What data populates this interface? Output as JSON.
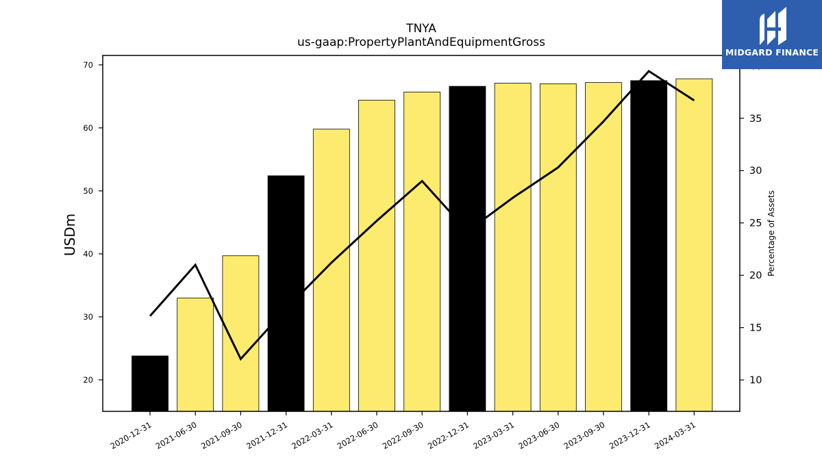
{
  "chart_data": {
    "type": "bar",
    "title": "TNYA",
    "subtitle": "us-gaap:PropertyPlantAndEquipmentGross",
    "ylabel": "USDm",
    "y2label": "Percentage of Assets",
    "categories": [
      "2020-12-31",
      "2021-06-30",
      "2021-09-30",
      "2021-12-31",
      "2022-03-31",
      "2022-06-30",
      "2022-09-30",
      "2022-12-31",
      "2023-03-31",
      "2023-06-30",
      "2023-09-30",
      "2023-12-31",
      "2024-03-31"
    ],
    "series": [
      {
        "type": "bar",
        "axis": "left",
        "values": [
          23.8,
          33.0,
          39.7,
          52.4,
          59.8,
          64.4,
          65.7,
          66.6,
          67.1,
          67.0,
          67.2,
          67.5,
          67.8
        ],
        "colors": [
          "#000000",
          "#fdeb6f",
          "#fdeb6f",
          "#000000",
          "#fdeb6f",
          "#fdeb6f",
          "#fdeb6f",
          "#000000",
          "#fdeb6f",
          "#fdeb6f",
          "#fdeb6f",
          "#000000",
          "#fdeb6f"
        ]
      },
      {
        "type": "line",
        "axis": "right",
        "color": "#000000",
        "values": [
          16.1,
          21.0,
          12.0,
          16.8,
          21.2,
          25.2,
          29.0,
          24.2,
          27.4,
          30.3,
          34.7,
          39.5,
          36.7
        ]
      }
    ],
    "ylim": [
      15,
      71.5
    ],
    "y2lim": [
      7,
      41
    ],
    "yticks": [
      20,
      30,
      40,
      50,
      60,
      70
    ],
    "y2ticks": [
      10,
      15,
      20,
      25,
      30,
      35,
      40
    ],
    "grid": false
  },
  "logo": {
    "text": "MIDGARD FINANCE"
  }
}
